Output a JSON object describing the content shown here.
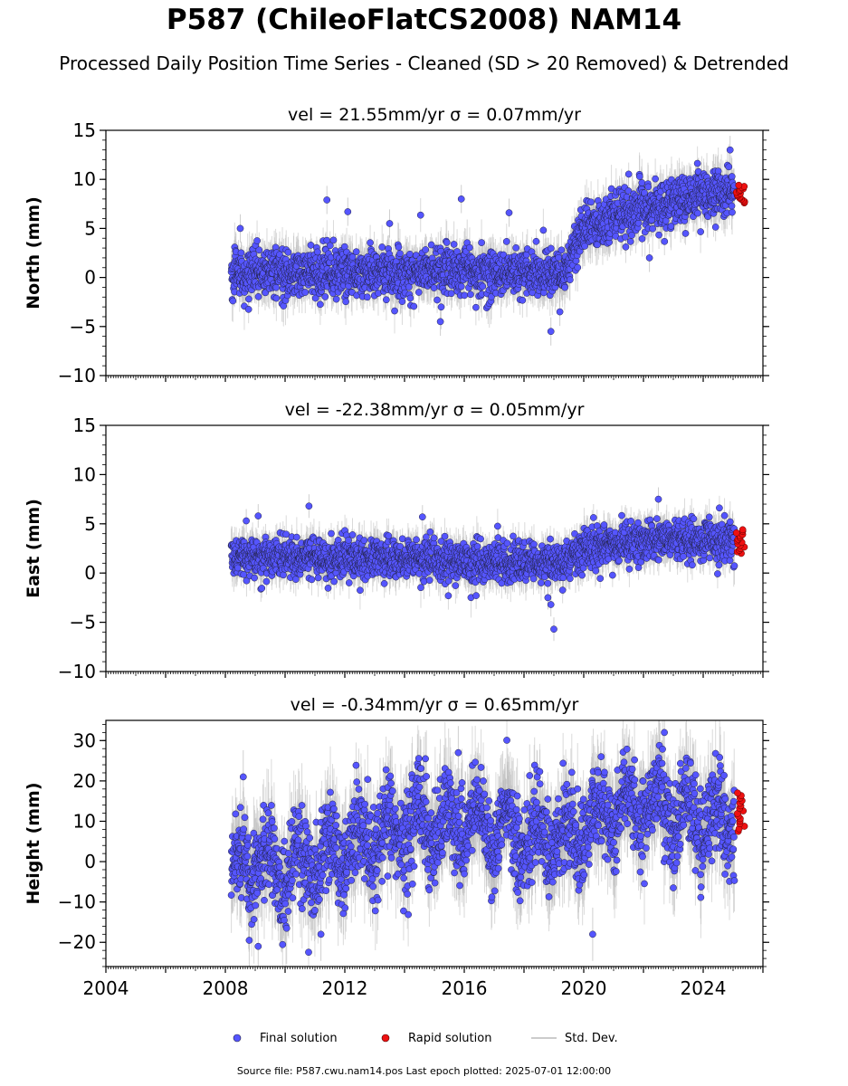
{
  "title": "P587 (ChileoFlatCS2008) NAM14",
  "subtitle": "Processed Daily Position Time Series - Cleaned (SD > 20 Removed) & Detrended",
  "legend": {
    "final": "Final solution",
    "rapid": "Rapid solution",
    "std": "Std. Dev."
  },
  "footer": "Source file: P587.cwu.nam14.pos  Last epoch plotted: 2025-07-01 12:00:00",
  "colors": {
    "final_fill": "#5555ff",
    "final_edge": "#222244",
    "rapid_fill": "#ee1111",
    "stddev": "#bbbbbb"
  },
  "chart_data": [
    {
      "type": "scatter",
      "panel_title": "vel = 21.55mm/yr   σ = 0.07mm/yr",
      "ylabel": "North (mm)",
      "xlim": [
        2004,
        2026
      ],
      "ylim": [
        -10,
        15
      ],
      "yticks": [
        "15",
        "10",
        "5",
        "0",
        "−5",
        "−10"
      ],
      "ytick_values": [
        15,
        10,
        5,
        0,
        -5,
        -10
      ],
      "trend_x": [
        2008.2,
        2010,
        2012,
        2014,
        2016,
        2018,
        2019.3,
        2020.0,
        2021,
        2022,
        2023,
        2024,
        2025.2
      ],
      "trend_y": [
        0.3,
        0.4,
        0.5,
        0.6,
        0.8,
        0.5,
        0.5,
        5.0,
        6.2,
        7.0,
        7.8,
        8.4,
        8.6
      ],
      "noise": 1.2,
      "rapid": {
        "x": [
          2025.1,
          2025.4
        ],
        "y": [
          7.6,
          9.4
        ]
      },
      "outliers": [
        {
          "x": 2008.5,
          "y": 5.0
        },
        {
          "x": 2011.4,
          "y": 7.9
        },
        {
          "x": 2012.1,
          "y": 6.7
        },
        {
          "x": 2015.9,
          "y": 8.0
        },
        {
          "x": 2017.5,
          "y": 6.6
        },
        {
          "x": 2018.9,
          "y": -5.5
        },
        {
          "x": 2019.2,
          "y": -3.5
        },
        {
          "x": 2022.2,
          "y": 2.0
        },
        {
          "x": 2024.9,
          "y": 13.0
        },
        {
          "x": 2013.5,
          "y": 5.5
        },
        {
          "x": 2015.2,
          "y": -4.5
        }
      ]
    },
    {
      "type": "scatter",
      "panel_title": "vel = -22.38mm/yr   σ = 0.05mm/yr",
      "ylabel": "East (mm)",
      "xlim": [
        2004,
        2026
      ],
      "ylim": [
        -10,
        15
      ],
      "yticks": [
        "15",
        "10",
        "5",
        "0",
        "−5",
        "−10"
      ],
      "ytick_values": [
        15,
        10,
        5,
        0,
        -5,
        -10
      ],
      "trend_x": [
        2008.2,
        2010,
        2012,
        2014,
        2016,
        2018,
        2019.3,
        2020.0,
        2021,
        2022,
        2023,
        2024,
        2025.2
      ],
      "trend_y": [
        1.8,
        1.6,
        1.5,
        1.3,
        1.2,
        1.0,
        1.2,
        2.3,
        2.9,
        3.2,
        3.3,
        3.2,
        3.3
      ],
      "noise": 1.0,
      "rapid": {
        "x": [
          2025.1,
          2025.4
        ],
        "y": [
          2.0,
          4.4
        ]
      },
      "outliers": [
        {
          "x": 2010.8,
          "y": 6.8
        },
        {
          "x": 2014.6,
          "y": 5.7
        },
        {
          "x": 2019.0,
          "y": -5.7
        },
        {
          "x": 2018.9,
          "y": -3.2
        },
        {
          "x": 2018.8,
          "y": -2.5
        },
        {
          "x": 2022.5,
          "y": 7.5
        },
        {
          "x": 2008.7,
          "y": 5.3
        },
        {
          "x": 2009.1,
          "y": 5.8
        }
      ]
    },
    {
      "type": "scatter",
      "panel_title": "vel = -0.34mm/yr   σ = 0.65mm/yr",
      "ylabel": "Height (mm)",
      "xlim": [
        2004,
        2026
      ],
      "ylim": [
        -26,
        35
      ],
      "yticks": [
        "30",
        "20",
        "10",
        "0",
        "−10",
        "−20"
      ],
      "ytick_values": [
        30,
        20,
        10,
        0,
        -10,
        -20
      ],
      "xticks": [
        "2004",
        "2008",
        "2012",
        "2016",
        "2020",
        "2024"
      ],
      "xtick_values": [
        2004,
        2008,
        2012,
        2016,
        2020,
        2024
      ],
      "trend_x": [
        2008.2,
        2009,
        2010,
        2011,
        2012,
        2013,
        2014,
        2015,
        2016,
        2017,
        2018,
        2019,
        2020,
        2021,
        2022,
        2023,
        2024,
        2025.2
      ],
      "trend_y": [
        -2,
        0,
        -2,
        0,
        3,
        5,
        8,
        9,
        10,
        8,
        6,
        5,
        9,
        12,
        14,
        12,
        10,
        12
      ],
      "noise": 5.5,
      "seasonal": 5,
      "rapid": {
        "x": [
          2025.1,
          2025.4
        ],
        "y": [
          7.5,
          17.0
        ]
      },
      "outliers": [
        {
          "x": 2008.6,
          "y": 21.0
        },
        {
          "x": 2008.8,
          "y": -19.5
        },
        {
          "x": 2009.1,
          "y": -21.0
        },
        {
          "x": 2011.2,
          "y": -18.0
        },
        {
          "x": 2020.3,
          "y": -18.0
        },
        {
          "x": 2022.7,
          "y": 32.0
        },
        {
          "x": 2014.7,
          "y": 25.5
        },
        {
          "x": 2015.8,
          "y": 27.0
        },
        {
          "x": 2023.0,
          "y": -6.5
        }
      ]
    }
  ]
}
